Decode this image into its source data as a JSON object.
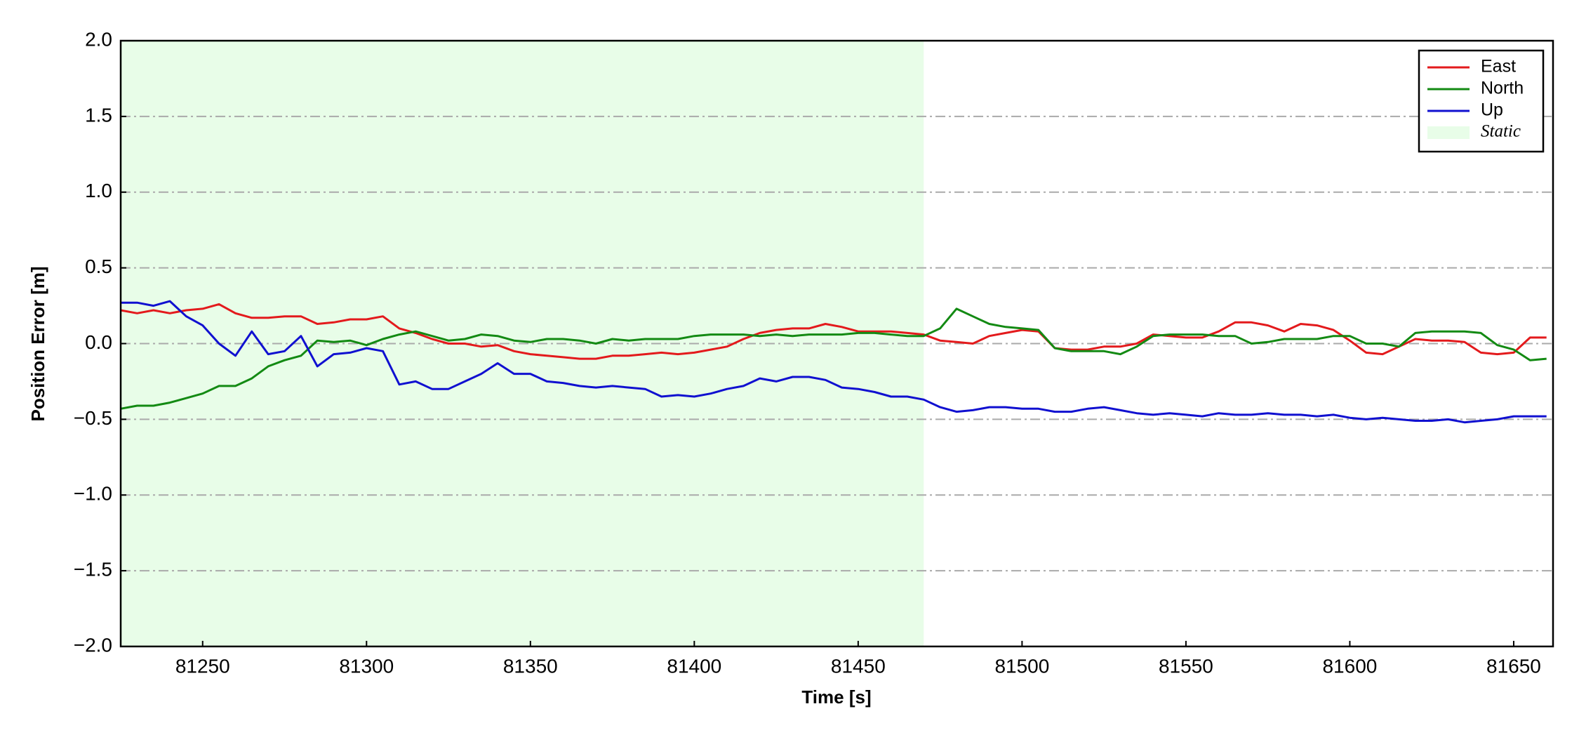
{
  "chart_data": {
    "type": "line",
    "xlabel": "Time [s]",
    "ylabel": "Position Error [m]",
    "x": [
      81225,
      81230,
      81235,
      81240,
      81245,
      81250,
      81255,
      81260,
      81265,
      81270,
      81275,
      81280,
      81285,
      81290,
      81295,
      81300,
      81305,
      81310,
      81315,
      81320,
      81325,
      81330,
      81335,
      81340,
      81345,
      81350,
      81355,
      81360,
      81365,
      81370,
      81375,
      81380,
      81385,
      81390,
      81395,
      81400,
      81405,
      81410,
      81415,
      81420,
      81425,
      81430,
      81435,
      81440,
      81445,
      81450,
      81455,
      81460,
      81465,
      81470,
      81475,
      81480,
      81485,
      81490,
      81495,
      81500,
      81505,
      81510,
      81515,
      81520,
      81525,
      81530,
      81535,
      81540,
      81545,
      81550,
      81555,
      81560,
      81565,
      81570,
      81575,
      81580,
      81585,
      81590,
      81595,
      81600,
      81605,
      81610,
      81615,
      81620,
      81625,
      81630,
      81635,
      81640,
      81645,
      81650,
      81655,
      81660
    ],
    "series": [
      {
        "name": "East",
        "color": "#e31a1c",
        "values": [
          0.22,
          0.2,
          0.22,
          0.2,
          0.22,
          0.23,
          0.26,
          0.2,
          0.17,
          0.17,
          0.18,
          0.18,
          0.13,
          0.14,
          0.16,
          0.16,
          0.18,
          0.1,
          0.07,
          0.03,
          0.0,
          0.0,
          -0.02,
          -0.01,
          -0.05,
          -0.07,
          -0.08,
          -0.09,
          -0.1,
          -0.1,
          -0.08,
          -0.08,
          -0.07,
          -0.06,
          -0.07,
          -0.06,
          -0.04,
          -0.02,
          0.03,
          0.07,
          0.09,
          0.1,
          0.1,
          0.13,
          0.11,
          0.08,
          0.08,
          0.08,
          0.07,
          0.06,
          0.02,
          0.01,
          0.0,
          0.05,
          0.07,
          0.09,
          0.08,
          -0.03,
          -0.04,
          -0.04,
          -0.02,
          -0.02,
          0.0,
          0.06,
          0.05,
          0.04,
          0.04,
          0.08,
          0.14,
          0.14,
          0.12,
          0.08,
          0.13,
          0.12,
          0.09,
          0.02,
          -0.06,
          -0.07,
          -0.02,
          0.03,
          0.02,
          0.02,
          0.01,
          -0.06,
          -0.07,
          -0.06,
          0.04,
          0.04
        ]
      },
      {
        "name": "North",
        "color": "#138a13",
        "values": [
          -0.43,
          -0.41,
          -0.41,
          -0.39,
          -0.36,
          -0.33,
          -0.28,
          -0.28,
          -0.23,
          -0.15,
          -0.11,
          -0.08,
          0.02,
          0.01,
          0.02,
          -0.01,
          0.03,
          0.06,
          0.08,
          0.05,
          0.02,
          0.03,
          0.06,
          0.05,
          0.02,
          0.01,
          0.03,
          0.03,
          0.02,
          0.0,
          0.03,
          0.02,
          0.03,
          0.03,
          0.03,
          0.05,
          0.06,
          0.06,
          0.06,
          0.05,
          0.06,
          0.05,
          0.06,
          0.06,
          0.06,
          0.07,
          0.07,
          0.06,
          0.05,
          0.05,
          0.1,
          0.23,
          0.18,
          0.13,
          0.11,
          0.1,
          0.09,
          -0.03,
          -0.05,
          -0.05,
          -0.05,
          -0.07,
          -0.02,
          0.05,
          0.06,
          0.06,
          0.06,
          0.05,
          0.05,
          0.0,
          0.01,
          0.03,
          0.03,
          0.03,
          0.05,
          0.05,
          0.0,
          0.0,
          -0.02,
          0.07,
          0.08,
          0.08,
          0.08,
          0.07,
          -0.01,
          -0.04,
          -0.11,
          -0.1
        ]
      },
      {
        "name": "Up",
        "color": "#1010d0",
        "values": [
          0.27,
          0.27,
          0.25,
          0.28,
          0.18,
          0.12,
          0.0,
          -0.08,
          0.08,
          -0.07,
          -0.05,
          0.05,
          -0.15,
          -0.07,
          -0.06,
          -0.03,
          -0.05,
          -0.27,
          -0.25,
          -0.3,
          -0.3,
          -0.25,
          -0.2,
          -0.13,
          -0.2,
          -0.2,
          -0.25,
          -0.26,
          -0.28,
          -0.29,
          -0.28,
          -0.29,
          -0.3,
          -0.35,
          -0.34,
          -0.35,
          -0.33,
          -0.3,
          -0.28,
          -0.23,
          -0.25,
          -0.22,
          -0.22,
          -0.24,
          -0.29,
          -0.3,
          -0.32,
          -0.35,
          -0.35,
          -0.37,
          -0.42,
          -0.45,
          -0.44,
          -0.42,
          -0.42,
          -0.43,
          -0.43,
          -0.45,
          -0.45,
          -0.43,
          -0.42,
          -0.44,
          -0.46,
          -0.47,
          -0.46,
          -0.47,
          -0.48,
          -0.46,
          -0.47,
          -0.47,
          -0.46,
          -0.47,
          -0.47,
          -0.48,
          -0.47,
          -0.49,
          -0.5,
          -0.49,
          -0.5,
          -0.51,
          -0.51,
          -0.5,
          -0.52,
          -0.51,
          -0.5,
          -0.48,
          -0.48,
          -0.48
        ]
      }
    ],
    "spans": [
      {
        "name": "Static",
        "start": 81225,
        "end": 81470,
        "color": "#e8fde8"
      }
    ],
    "xlim": [
      81225,
      81662
    ],
    "xticks": [
      81250,
      81300,
      81350,
      81400,
      81450,
      81500,
      81550,
      81600,
      81650
    ],
    "ylim": [
      -2.0,
      2.0
    ],
    "yticks": [
      {
        "value": -2.0,
        "label": "−2.0"
      },
      {
        "value": -1.5,
        "label": "−1.5"
      },
      {
        "value": -1.0,
        "label": "−1.0"
      },
      {
        "value": -0.5,
        "label": "−0.5"
      },
      {
        "value": 0,
        "label": "0.0"
      },
      {
        "value": 0.5,
        "label": "0.5"
      },
      {
        "value": 1.0,
        "label": "1.0"
      },
      {
        "value": 1.5,
        "label": "1.5"
      },
      {
        "value": 2.0,
        "label": "2.0"
      }
    ],
    "grid": true,
    "legend": "upper right"
  }
}
